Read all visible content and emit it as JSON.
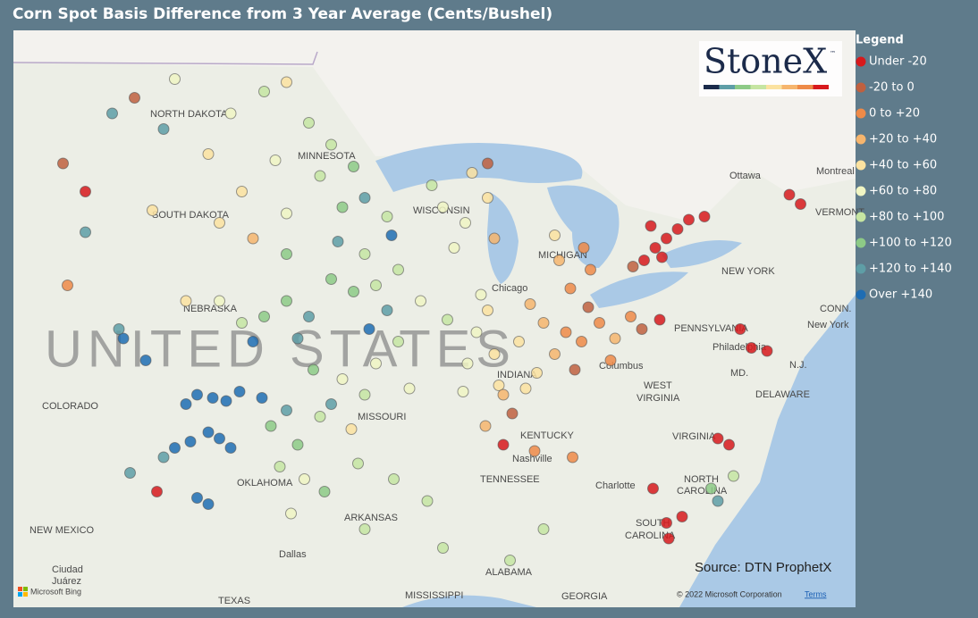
{
  "title": "Corn Spot Basis Difference from 3 Year Average (Cents/Bushel)",
  "legend": {
    "title": "Legend",
    "classes": [
      {
        "label": "Under -20",
        "color": "#d7191c"
      },
      {
        "label": "-20 to 0",
        "color": "#c0603f"
      },
      {
        "label": "0 to +20",
        "color": "#ee8a48"
      },
      {
        "label": "+20 to +40",
        "color": "#f6b56d"
      },
      {
        "label": "+40 to +60",
        "color": "#fbe2a0"
      },
      {
        "label": "+60 to +80",
        "color": "#f0f5c3"
      },
      {
        "label": "+80 to +100",
        "color": "#c6e5a2"
      },
      {
        "label": "+100 to +120",
        "color": "#8dca86"
      },
      {
        "label": "+120 to +140",
        "color": "#5e9ea6"
      },
      {
        "label": "Over +140",
        "color": "#1f6db3"
      }
    ]
  },
  "points": [
    [
      -81,
      43.2,
      0
    ],
    [
      -80.5,
      43.5,
      0
    ],
    [
      -80,
      43.8,
      0
    ],
    [
      -81.5,
      42.8,
      0
    ],
    [
      -79.5,
      44.1,
      0
    ],
    [
      -78.8,
      44.2,
      0
    ],
    [
      -80.7,
      42.9,
      0
    ],
    [
      -82,
      42.6,
      1
    ],
    [
      -81.2,
      43.9,
      0
    ],
    [
      -75,
      44.9,
      0
    ],
    [
      -74.5,
      44.6,
      0
    ],
    [
      -76.7,
      40,
      0
    ],
    [
      -76,
      39.9,
      0
    ],
    [
      -77.2,
      40.6,
      0
    ],
    [
      -78.2,
      37.1,
      0
    ],
    [
      -77.7,
      36.9,
      0
    ],
    [
      -80.5,
      34.4,
      0
    ],
    [
      -79.8,
      34.6,
      0
    ],
    [
      -80.4,
      33.9,
      0
    ],
    [
      -81.1,
      35.5,
      0
    ],
    [
      -78.5,
      35.5,
      7
    ],
    [
      -78.2,
      35.1,
      8
    ],
    [
      -77.5,
      35.9,
      6
    ],
    [
      -85,
      40.5,
      2
    ],
    [
      -84.3,
      40.2,
      2
    ],
    [
      -83.5,
      40.8,
      2
    ],
    [
      -82.8,
      40.3,
      3
    ],
    [
      -82.1,
      41,
      2
    ],
    [
      -84,
      41.3,
      1
    ],
    [
      -85.5,
      39.8,
      3
    ],
    [
      -86,
      40.8,
      3
    ],
    [
      -83,
      39.6,
      2
    ],
    [
      -84.6,
      39.3,
      1
    ],
    [
      -81.6,
      40.6,
      1
    ],
    [
      -80.8,
      40.9,
      0
    ],
    [
      -86.6,
      41.4,
      3
    ],
    [
      -84.8,
      41.9,
      2
    ],
    [
      -83.9,
      42.5,
      2
    ],
    [
      -85.3,
      42.8,
      3
    ],
    [
      -84.2,
      43.2,
      2
    ],
    [
      -85.5,
      43.6,
      4
    ],
    [
      -86.3,
      39.2,
      4
    ],
    [
      -87.1,
      40.2,
      4
    ],
    [
      -88.5,
      41.2,
      4
    ],
    [
      -89,
      40.5,
      5
    ],
    [
      -88.2,
      39.8,
      4
    ],
    [
      -89.4,
      39.5,
      5
    ],
    [
      -88,
      38.8,
      4
    ],
    [
      -89.6,
      38.6,
      5
    ],
    [
      -90.3,
      40.9,
      6
    ],
    [
      -88.8,
      41.7,
      5
    ],
    [
      -87.8,
      38.5,
      3
    ],
    [
      -86.8,
      38.7,
      4
    ],
    [
      -87.4,
      37.9,
      1
    ],
    [
      -88.6,
      37.5,
      3
    ],
    [
      -86.4,
      36.7,
      2
    ],
    [
      -87.8,
      36.9,
      0
    ],
    [
      -84.7,
      36.5,
      2
    ],
    [
      -89.5,
      44,
      5
    ],
    [
      -90.5,
      44.5,
      5
    ],
    [
      -88.5,
      44.8,
      4
    ],
    [
      -88.2,
      43.5,
      3
    ],
    [
      -90,
      43.2,
      5
    ],
    [
      -91,
      45.2,
      6
    ],
    [
      -89.2,
      45.6,
      4
    ],
    [
      -88.5,
      45.9,
      1
    ],
    [
      -93.5,
      42,
      6
    ],
    [
      -94.5,
      41.8,
      7
    ],
    [
      -92.5,
      42.5,
      6
    ],
    [
      -95.5,
      42.2,
      7
    ],
    [
      -91.5,
      41.5,
      5
    ],
    [
      -93,
      41.2,
      8
    ],
    [
      -94,
      43,
      6
    ],
    [
      -95,
      44.5,
      7
    ],
    [
      -94,
      44.8,
      8
    ],
    [
      -93,
      44.2,
      6
    ],
    [
      -96,
      45.5,
      6
    ],
    [
      -95.5,
      46.5,
      6
    ],
    [
      -96.5,
      47.2,
      6
    ],
    [
      -94.5,
      45.8,
      7
    ],
    [
      -92.8,
      43.6,
      9
    ],
    [
      -93.8,
      40.6,
      9
    ],
    [
      -95.2,
      43.4,
      8
    ],
    [
      -98,
      46,
      5
    ],
    [
      -99.5,
      45,
      4
    ],
    [
      -97.5,
      44.3,
      5
    ],
    [
      -100,
      47.5,
      5
    ],
    [
      -98.5,
      48.2,
      6
    ],
    [
      -97.5,
      48.5,
      4
    ],
    [
      -101,
      46.2,
      4
    ],
    [
      -103,
      47,
      8
    ],
    [
      -102.5,
      48.6,
      5
    ],
    [
      -99,
      43.5,
      3
    ],
    [
      -97.5,
      43,
      7
    ],
    [
      -100.5,
      44,
      4
    ],
    [
      -103.5,
      44.4,
      4
    ],
    [
      -104.3,
      48,
      1
    ],
    [
      -97.5,
      41.5,
      7
    ],
    [
      -98.5,
      41,
      7
    ],
    [
      -96.5,
      41,
      8
    ],
    [
      -99.5,
      40.8,
      6
    ],
    [
      -100.5,
      41.5,
      5
    ],
    [
      -102,
      41.5,
      4
    ],
    [
      -97,
      40.3,
      8
    ],
    [
      -96.3,
      39.3,
      7
    ],
    [
      -97.5,
      38,
      8
    ],
    [
      -98.2,
      37.5,
      7
    ],
    [
      -96,
      37.8,
      6
    ],
    [
      -97,
      36.9,
      7
    ],
    [
      -95,
      39,
      5
    ],
    [
      -95.5,
      38.2,
      8
    ],
    [
      -94,
      38.5,
      6
    ],
    [
      -93.5,
      39.5,
      5
    ],
    [
      -92.5,
      40.2,
      6
    ],
    [
      -92,
      38.7,
      5
    ],
    [
      -94.6,
      37.4,
      4
    ],
    [
      -101.5,
      38.5,
      9
    ],
    [
      -100.8,
      38.4,
      9
    ],
    [
      -100.2,
      38.3,
      9
    ],
    [
      -101,
      37.3,
      9
    ],
    [
      -100.5,
      37.1,
      9
    ],
    [
      -101.8,
      37,
      9
    ],
    [
      -99.6,
      38.6,
      9
    ],
    [
      -102,
      38.2,
      9
    ],
    [
      -100,
      36.8,
      9
    ],
    [
      -98.6,
      38.4,
      9
    ],
    [
      -99,
      40.2,
      9
    ],
    [
      -102.5,
      36.8,
      9
    ],
    [
      -97.8,
      36.2,
      6
    ],
    [
      -96.7,
      35.8,
      5
    ],
    [
      -95.8,
      35.4,
      7
    ],
    [
      -94.3,
      36.3,
      6
    ],
    [
      -101.5,
      35.2,
      9
    ],
    [
      -101,
      35,
      9
    ],
    [
      -103,
      36.5,
      8
    ],
    [
      -97.3,
      34.7,
      5
    ],
    [
      -94,
      34.2,
      6
    ],
    [
      -92.7,
      35.8,
      6
    ],
    [
      -91.2,
      35.1,
      6
    ],
    [
      -90.5,
      33.6,
      6
    ],
    [
      -87.5,
      33.2,
      6
    ],
    [
      -86,
      34.2,
      6
    ],
    [
      -104.8,
      40.3,
      9
    ],
    [
      -103.8,
      39.6,
      9
    ],
    [
      -105,
      40.6,
      8
    ],
    [
      -107.3,
      42,
      2
    ],
    [
      -104.5,
      36,
      8
    ],
    [
      -103.3,
      35.4,
      0
    ],
    [
      -107.5,
      45.9,
      1
    ],
    [
      -106.5,
      45,
      0
    ],
    [
      -105.3,
      47.5,
      8
    ],
    [
      -106.5,
      43.7,
      8
    ]
  ],
  "labels": [
    "NORTH DAKOTA",
    "MINNESOTA",
    "SOUTH DAKOTA",
    "WISCONSIN",
    "NEBRASKA",
    "UNITED STATES",
    "COLORADO",
    "MISSOURI",
    "KENTUCKY",
    "TENNESSEE",
    "OKLAHOMA",
    "ARKANSAS",
    "NEW MEXICO",
    "TEXAS",
    "MISSISSIPPI",
    "ALABAMA",
    "GEORGIA",
    "SOUTH",
    "CAROLINA",
    "NORTH",
    "CAROLINA",
    "VIRGINIA",
    "WEST",
    "VIRGINIA",
    "PENNSYLVANIA",
    "NEW YORK",
    "MD.",
    "N.J.",
    "DELAWARE",
    "VERMONT",
    "CONN.",
    "Chicago",
    "Columbus",
    "Nashville",
    "Charlotte",
    "Philadelphia",
    "New York",
    "Ottawa",
    "Montreal",
    "Dallas",
    "Ciudad",
    "Juárez",
    "MICHIGAN",
    "INDIANA"
  ],
  "logo": "StoneX",
  "logo_mark": "™",
  "source": "Source: DTN ProphetX",
  "bing": "Microsoft Bing",
  "copyright": "© 2022 Microsoft Corporation",
  "terms": "Terms"
}
